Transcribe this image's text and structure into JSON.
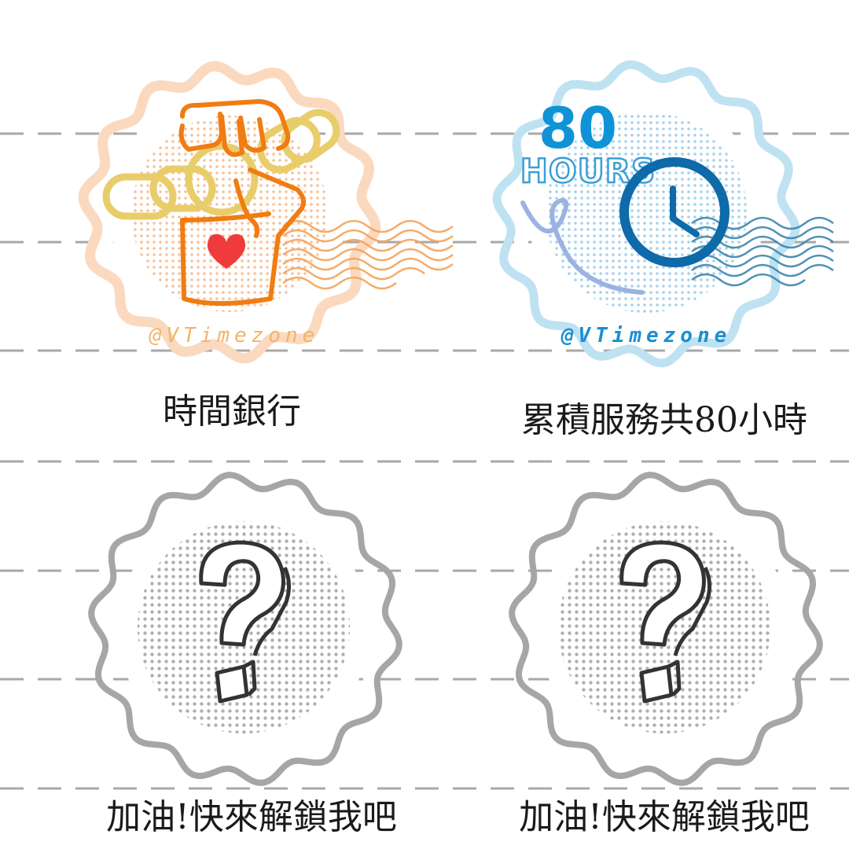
{
  "badges": [
    {
      "label": "時間銀行",
      "watermark": "@VTimezone",
      "state": "unlocked",
      "icon": "fist-with-chain-icon",
      "ring_color": "#fbd9bf",
      "accent_color": "#f08a24",
      "watermark_color": "#f2b46a"
    },
    {
      "label": "累積服務共80小時",
      "watermark": "@VTimezone",
      "state": "unlocked",
      "icon": "clock-icon",
      "headline_number": "80",
      "headline_unit": "HOURS",
      "ring_color": "#bfe2f2",
      "accent_color": "#0e6aa8",
      "watermark_color": "#1a8fd0"
    },
    {
      "label": "加油!快來解鎖我吧",
      "state": "locked",
      "icon": "question-mark-icon",
      "ring_color": "#a6a6a6"
    },
    {
      "label": "加油!快來解鎖我吧",
      "state": "locked",
      "icon": "question-mark-icon",
      "ring_color": "#a6a6a6"
    }
  ],
  "colors": {
    "background": "#ffffff",
    "dashed_rule": "#a8a8a8",
    "label_text": "#1a1a1a"
  }
}
